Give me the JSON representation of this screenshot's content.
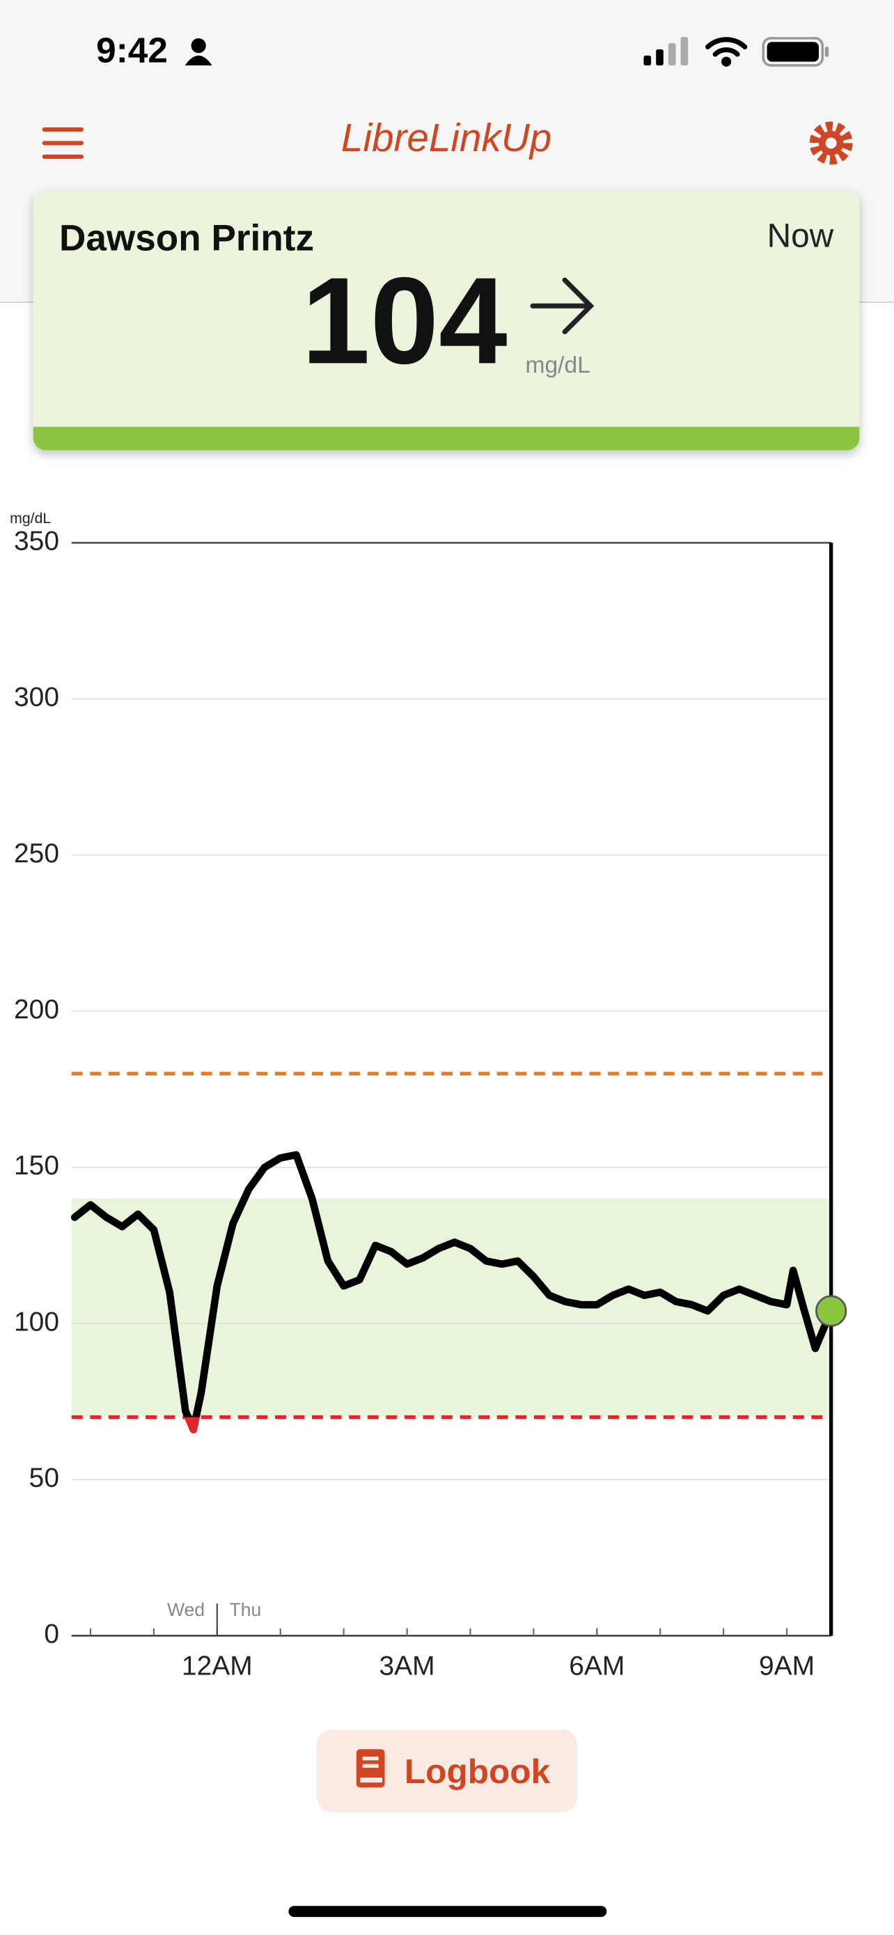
{
  "status_bar": {
    "time": "9:42"
  },
  "header": {
    "title": "LibreLinkUp"
  },
  "reading": {
    "name": "Dawson Printz",
    "when": "Now",
    "value": 104,
    "unit": "mg/dL"
  },
  "chart_data": {
    "type": "line",
    "y_label": "mg/dL",
    "x": [
      -2.25,
      -2.0,
      -1.75,
      -1.5,
      -1.25,
      -1.0,
      -0.75,
      -0.5,
      -0.375,
      -0.25,
      0,
      0.25,
      0.5,
      0.75,
      1.0,
      1.25,
      1.5,
      1.75,
      2.0,
      2.25,
      2.5,
      2.75,
      3.0,
      3.25,
      3.5,
      3.75,
      4.0,
      4.25,
      4.5,
      4.75,
      5.0,
      5.25,
      5.5,
      5.75,
      6.0,
      6.25,
      6.5,
      6.75,
      7.0,
      7.25,
      7.5,
      7.75,
      8.0,
      8.25,
      8.5,
      8.75,
      9.0,
      9.1,
      9.25,
      9.45,
      9.7
    ],
    "values": [
      134,
      138,
      134,
      131,
      135,
      130,
      110,
      72,
      66,
      78,
      112,
      132,
      143,
      150,
      153,
      154,
      140,
      120,
      112,
      114,
      125,
      123,
      119,
      121,
      124,
      126,
      124,
      120,
      119,
      120,
      115,
      109,
      107,
      106,
      106,
      109,
      111,
      109,
      110,
      107,
      106,
      104,
      109,
      111,
      109,
      107,
      106,
      117,
      106,
      92,
      104
    ],
    "color": "#000000",
    "low_color": "#e0262b",
    "xlim": [
      -2.3,
      9.7
    ],
    "ylim": [
      0,
      350
    ],
    "xticks": [
      {
        "value": 0,
        "label": "12AM"
      },
      {
        "value": 3,
        "label": "3AM"
      },
      {
        "value": 6,
        "label": "6AM"
      },
      {
        "value": 9,
        "label": "9AM"
      }
    ],
    "yticks": [
      0,
      50,
      100,
      150,
      200,
      250,
      300,
      350
    ],
    "grid": true,
    "day_labels": [
      "Wed",
      "Thu"
    ],
    "target_range": [
      70,
      140
    ],
    "target_color": "#e8f5da",
    "high_line": 180,
    "high_color": "#ef7a1a",
    "low_line": 70,
    "current_color": "#8cc63f"
  },
  "footer": {
    "button": "Logbook"
  }
}
